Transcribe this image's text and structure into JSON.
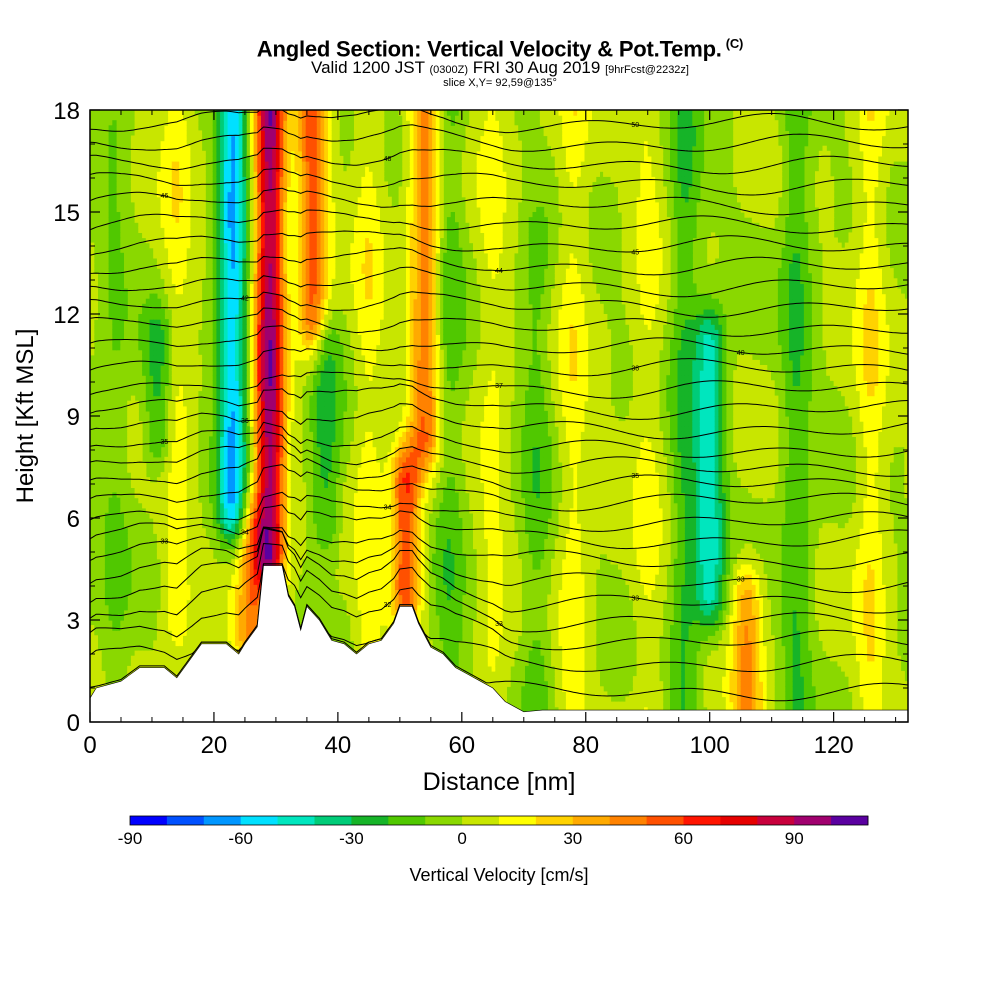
{
  "title": {
    "main": "Angled Section: Vertical Velocity & Pot.Temp.",
    "tag": "(C)",
    "valid_a": "Valid 1200 JST",
    "valid_b": "(0300Z)",
    "valid_c": "FRI 30 Aug 2019",
    "valid_d": "[9hrFcst@2232z]",
    "slice": "slice X,Y= 92,59@135°"
  },
  "chart_data": {
    "type": "heatmap",
    "xlabel": "Distance [nm]",
    "ylabel": "Height [Kft MSL]",
    "xlim": [
      0,
      132
    ],
    "ylim": [
      0,
      18
    ],
    "x_ticks": [
      0,
      20,
      40,
      60,
      80,
      100,
      120
    ],
    "y_ticks": [
      0,
      3,
      6,
      9,
      12,
      15,
      18
    ],
    "colorbar": {
      "label": "Vertical Velocity [cm/s]",
      "min": -90,
      "step": 10,
      "tick_values": [
        -90,
        -60,
        -30,
        0,
        30,
        60,
        90
      ],
      "colors": [
        "#0000ff",
        "#0050ff",
        "#0096ff",
        "#00e0ff",
        "#00e6be",
        "#00cc78",
        "#16b428",
        "#50c800",
        "#8ad800",
        "#c8e600",
        "#ffff00",
        "#ffd200",
        "#ffaa00",
        "#ff8200",
        "#ff5000",
        "#ff1400",
        "#e60000",
        "#c8003c",
        "#a0006e",
        "#5a00a0"
      ]
    },
    "updrafts": [
      {
        "x": 29,
        "y0": 5.0,
        "y1": 18,
        "peak": 95
      },
      {
        "x": 36,
        "y0": 12,
        "y1": 18,
        "peak": 55
      },
      {
        "x": 54,
        "y0": 8.5,
        "y1": 18,
        "peak": 45
      },
      {
        "x": 51,
        "y0": 4.0,
        "y1": 7.0,
        "peak": 60
      },
      {
        "x": 26,
        "y0": 2.5,
        "y1": 5.5,
        "peak": 40
      },
      {
        "x": 106,
        "y0": 0.5,
        "y1": 3.5,
        "peak": 40
      },
      {
        "x": 45,
        "y0": 0,
        "y1": 18,
        "peak": 15
      },
      {
        "x": 65,
        "y0": 0,
        "y1": 18,
        "peak": 12
      },
      {
        "x": 78,
        "y0": 0,
        "y1": 18,
        "peak": 15
      },
      {
        "x": 90,
        "y0": 0,
        "y1": 18,
        "peak": 12
      },
      {
        "x": 126,
        "y0": 0,
        "y1": 18,
        "peak": 18
      },
      {
        "x": 14,
        "y0": 3,
        "y1": 18,
        "peak": 15
      }
    ],
    "downdrafts": [
      {
        "x": 23,
        "y0": 6.5,
        "y1": 18,
        "peak": -60
      },
      {
        "x": 100,
        "y0": 4.0,
        "y1": 11,
        "peak": -45
      },
      {
        "x": 11,
        "y0": 8.5,
        "y1": 11,
        "peak": -25
      },
      {
        "x": 38,
        "y0": 6.0,
        "y1": 11,
        "peak": -25
      },
      {
        "x": 58,
        "y0": 0,
        "y1": 18,
        "peak": -15
      },
      {
        "x": 72,
        "y0": 0,
        "y1": 14,
        "peak": -15
      },
      {
        "x": 96,
        "y0": 0,
        "y1": 18,
        "peak": -20
      },
      {
        "x": 114,
        "y0": 0,
        "y1": 18,
        "peak": -20
      },
      {
        "x": 4,
        "y0": 0,
        "y1": 18,
        "peak": -10
      }
    ],
    "terrain": [
      [
        0,
        0.7
      ],
      [
        1,
        1.0
      ],
      [
        5,
        1.2
      ],
      [
        8,
        1.6
      ],
      [
        12,
        1.6
      ],
      [
        14,
        1.3
      ],
      [
        16,
        1.8
      ],
      [
        18,
        2.3
      ],
      [
        22,
        2.3
      ],
      [
        24,
        2.0
      ],
      [
        25,
        2.3
      ],
      [
        27,
        2.8
      ],
      [
        28,
        4.6
      ],
      [
        31,
        4.6
      ],
      [
        32,
        3.7
      ],
      [
        33,
        3.4
      ],
      [
        34,
        2.7
      ],
      [
        35,
        3.4
      ],
      [
        37,
        3.0
      ],
      [
        39,
        2.4
      ],
      [
        41,
        2.3
      ],
      [
        43,
        2.0
      ],
      [
        45,
        2.3
      ],
      [
        47,
        2.4
      ],
      [
        49,
        2.9
      ],
      [
        50,
        3.4
      ],
      [
        52,
        3.4
      ],
      [
        53,
        2.9
      ],
      [
        55,
        2.2
      ],
      [
        57,
        2.0
      ],
      [
        59,
        1.6
      ],
      [
        61,
        1.4
      ],
      [
        63,
        1.2
      ],
      [
        65,
        1.0
      ],
      [
        67,
        0.6
      ],
      [
        70,
        0.3
      ],
      [
        73,
        0.35
      ],
      [
        132,
        0.35
      ]
    ],
    "theta_contours": [
      {
        "base": 0.9,
        "lift": 0.0,
        "label": ""
      },
      {
        "base": 1.7,
        "lift": 0.4,
        "label": ""
      },
      {
        "base": 2.4,
        "lift": 0.5,
        "label": "32"
      },
      {
        "base": 2.95,
        "lift": 0.5,
        "label": "33"
      },
      {
        "base": 3.5,
        "lift": 0.5,
        "label": "33"
      },
      {
        "base": 4.1,
        "lift": 0.4,
        "label": "33"
      },
      {
        "base": 4.75,
        "lift": 0.3,
        "label": "33"
      },
      {
        "base": 5.35,
        "lift": 0.3,
        "label": "34"
      },
      {
        "base": 5.9,
        "lift": 0.2,
        "label": "34"
      },
      {
        "base": 6.5,
        "lift": 0.2,
        "label": ""
      },
      {
        "base": 7.0,
        "lift": 0.2,
        "label": "35"
      },
      {
        "base": 7.5,
        "lift": 0.2,
        "label": ""
      },
      {
        "base": 8.0,
        "lift": 0.2,
        "label": "35"
      },
      {
        "base": 8.6,
        "lift": 0.2,
        "label": "36"
      },
      {
        "base": 9.2,
        "lift": 0.2,
        "label": ""
      },
      {
        "base": 9.8,
        "lift": 0.1,
        "label": "37"
      },
      {
        "base": 10.4,
        "lift": 0.1,
        "label": "38"
      },
      {
        "base": 11.0,
        "lift": 0.1,
        "label": "40"
      },
      {
        "base": 11.6,
        "lift": 0.1,
        "label": ""
      },
      {
        "base": 12.2,
        "lift": 0.1,
        "label": "42"
      },
      {
        "base": 12.8,
        "lift": 0.1,
        "label": ""
      },
      {
        "base": 13.4,
        "lift": 0.1,
        "label": "44"
      },
      {
        "base": 14.0,
        "lift": 0.1,
        "label": "45"
      },
      {
        "base": 14.6,
        "lift": 0.1,
        "label": ""
      },
      {
        "base": 15.2,
        "lift": 0.1,
        "label": "46"
      },
      {
        "base": 15.8,
        "lift": 0.1,
        "label": ""
      },
      {
        "base": 16.4,
        "lift": 0.1,
        "label": "48"
      },
      {
        "base": 17.0,
        "lift": 0.1,
        "label": ""
      },
      {
        "base": 17.6,
        "lift": 0.1,
        "label": "50"
      }
    ]
  }
}
